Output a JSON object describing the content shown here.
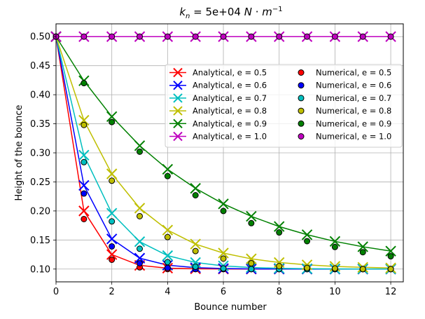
{
  "chart_data": {
    "type": "line",
    "title": "k_n = 5e+04 N · m⁻¹",
    "title_parts": {
      "lhs": "k",
      "lhs_sub": "n",
      "eq": " = 5e+04 ",
      "unit1": "N",
      "dot": " · ",
      "unit2": "m",
      "unit2_sup": "−1"
    },
    "xlabel": "Bounce number",
    "ylabel": "Height of the bounce",
    "xlim": [
      0,
      12.45
    ],
    "ylim": [
      0.078,
      0.522
    ],
    "xticks": [
      0,
      2,
      4,
      6,
      8,
      10,
      12
    ],
    "xtick_labels": [
      "0",
      "2",
      "4",
      "6",
      "8",
      "10",
      "12"
    ],
    "yticks": [
      0.1,
      0.15,
      0.2,
      0.25,
      0.3,
      0.35,
      0.4,
      0.45,
      0.5
    ],
    "ytick_labels": [
      "0.10",
      "0.15",
      "0.20",
      "0.25",
      "0.30",
      "0.35",
      "0.40",
      "0.45",
      "0.50"
    ],
    "grid": true,
    "legend_position": "upper-right",
    "x": [
      0,
      1,
      2,
      3,
      4,
      5,
      6,
      7,
      8,
      9,
      10,
      11,
      12
    ],
    "series": [
      {
        "name": "Analytical, e = 0.5",
        "marker": "x",
        "color": "#ff0000",
        "values": [
          0.5,
          0.2,
          0.125,
          0.1063,
          0.1016,
          0.1004,
          0.1001,
          0.1,
          0.1,
          0.1,
          0.1,
          0.1,
          0.1
        ]
      },
      {
        "name": "Analytical, e = 0.6",
        "marker": "x",
        "color": "#0000ff",
        "values": [
          0.5,
          0.244,
          0.1518,
          0.1187,
          0.1067,
          0.1024,
          0.1009,
          0.1003,
          0.1001,
          0.1,
          0.1,
          0.1,
          0.1
        ]
      },
      {
        "name": "Analytical, e = 0.7",
        "marker": "x",
        "color": "#00bfbf",
        "values": [
          0.5,
          0.296,
          0.196,
          0.1471,
          0.1231,
          0.1113,
          0.1055,
          0.1027,
          0.1013,
          0.1006,
          0.1003,
          0.1002,
          0.1001
        ]
      },
      {
        "name": "Analytical, e = 0.8",
        "marker": "x",
        "color": "#bfbf00",
        "values": [
          0.5,
          0.356,
          0.2638,
          0.2048,
          0.1671,
          0.1429,
          0.1275,
          0.1176,
          0.1113,
          0.1072,
          0.1046,
          0.103,
          0.1019
        ]
      },
      {
        "name": "Analytical, e = 0.9",
        "marker": "x",
        "color": "#008000",
        "values": [
          0.5,
          0.424,
          0.3624,
          0.3123,
          0.2717,
          0.2389,
          0.2122,
          0.1907,
          0.1732,
          0.1591,
          0.1476,
          0.1384,
          0.1309
        ]
      },
      {
        "name": "Analytical, e = 1.0",
        "marker": "x",
        "color": "#bf00bf",
        "values": [
          0.5,
          0.5,
          0.5,
          0.5,
          0.5,
          0.5,
          0.5,
          0.5,
          0.5,
          0.5,
          0.5,
          0.5,
          0.5
        ]
      },
      {
        "name": "Numerical, e = 0.5",
        "marker": "o",
        "color": "#ff0000",
        "values": [
          0.5,
          0.186,
          0.116,
          0.103,
          0.1,
          0.1,
          0.1,
          0.1,
          0.1,
          0.1,
          0.1,
          0.1,
          0.1
        ]
      },
      {
        "name": "Numerical, e = 0.6",
        "marker": "o",
        "color": "#0000ff",
        "values": [
          0.5,
          0.23,
          0.139,
          0.11,
          0.102,
          0.1,
          0.1,
          0.1,
          0.1,
          0.1,
          0.1,
          0.1,
          0.1
        ]
      },
      {
        "name": "Numerical, e = 0.7",
        "marker": "o",
        "color": "#00bfbf",
        "values": [
          0.5,
          0.284,
          0.182,
          0.135,
          0.112,
          0.104,
          0.101,
          0.1,
          0.1,
          0.1,
          0.1,
          0.1,
          0.1
        ]
      },
      {
        "name": "Numerical, e = 0.8",
        "marker": "o",
        "color": "#bfbf00",
        "values": [
          0.5,
          0.348,
          0.252,
          0.191,
          0.155,
          0.131,
          0.118,
          0.11,
          0.105,
          0.102,
          0.101,
          0.1,
          0.1
        ]
      },
      {
        "name": "Numerical, e = 0.9",
        "marker": "o",
        "color": "#008000",
        "values": [
          0.5,
          0.42,
          0.353,
          0.302,
          0.26,
          0.227,
          0.2,
          0.179,
          0.163,
          0.148,
          0.138,
          0.129,
          0.122
        ]
      },
      {
        "name": "Numerical, e = 1.0",
        "marker": "o",
        "color": "#bf00bf",
        "values": [
          0.5,
          0.5,
          0.5,
          0.5,
          0.5,
          0.5,
          0.5,
          0.5,
          0.5,
          0.5,
          0.5,
          0.5,
          0.5
        ]
      }
    ]
  }
}
